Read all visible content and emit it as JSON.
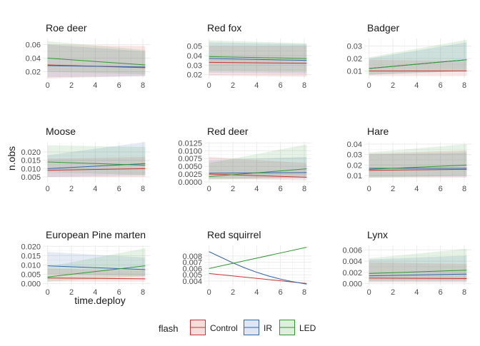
{
  "chart_data": {
    "type": "line",
    "x_axis_label": "time.deploy",
    "y_axis_label": "n.obs",
    "legend": {
      "title": "flash",
      "placement": "bottom",
      "entries": [
        "Control",
        "IR",
        "LED"
      ]
    },
    "series_colors": {
      "Control": "#cc3333",
      "IR": "#3366aa",
      "LED": "#339933"
    },
    "band_opacity": 0.13,
    "x_ticks": [
      "0",
      "2",
      "4",
      "6",
      "8"
    ],
    "x_range": [
      -0.4,
      8.6
    ],
    "grid": true,
    "panels": [
      {
        "title": "Roe deer",
        "ylim": [
          0.01,
          0.069
        ],
        "y_ticks": [
          "0.02",
          "0.04",
          "0.06"
        ],
        "series": [
          {
            "name": "Control",
            "x": [
              0,
              8.2
            ],
            "y": [
              0.03,
              0.026
            ],
            "lower": [
              0.01,
              0.014
            ],
            "upper": [
              0.06,
              0.058
            ]
          },
          {
            "name": "IR",
            "x": [
              0,
              8.2
            ],
            "y": [
              0.029,
              0.027
            ],
            "lower": [
              0.012,
              0.013
            ],
            "upper": [
              0.06,
              0.05
            ]
          },
          {
            "name": "LED",
            "x": [
              0,
              8.2
            ],
            "y": [
              0.04,
              0.03
            ],
            "lower": [
              0.02,
              0.016
            ],
            "upper": [
              0.065,
              0.052
            ]
          }
        ]
      },
      {
        "title": "Red fox",
        "ylim": [
          0.016,
          0.058
        ],
        "y_ticks": [
          "0.02",
          "0.03",
          "0.04",
          "0.05"
        ],
        "series": [
          {
            "name": "Control",
            "x": [
              0,
              8.2
            ],
            "y": [
              0.033,
              0.032
            ],
            "lower": [
              0.019,
              0.018
            ],
            "upper": [
              0.05,
              0.05
            ]
          },
          {
            "name": "IR",
            "x": [
              0,
              8.2
            ],
            "y": [
              0.037,
              0.035
            ],
            "lower": [
              0.022,
              0.021
            ],
            "upper": [
              0.054,
              0.052
            ]
          },
          {
            "name": "LED",
            "x": [
              0,
              8.2
            ],
            "y": [
              0.039,
              0.037
            ],
            "lower": [
              0.024,
              0.023
            ],
            "upper": [
              0.056,
              0.053
            ]
          }
        ]
      },
      {
        "title": "Badger",
        "ylim": [
          0.004,
          0.036
        ],
        "y_ticks": [
          "0.01",
          "0.02",
          "0.03"
        ],
        "series": [
          {
            "name": "Control",
            "x": [
              0,
              8.2
            ],
            "y": [
              0.01,
              0.01
            ],
            "lower": [
              0.006,
              0.006
            ],
            "upper": [
              0.019,
              0.018
            ]
          },
          {
            "name": "IR",
            "x": [
              0,
              8.2
            ],
            "y": [
              0.012,
              0.019
            ],
            "lower": [
              0.007,
              0.01
            ],
            "upper": [
              0.02,
              0.033
            ]
          },
          {
            "name": "LED",
            "x": [
              0,
              8.2
            ],
            "y": [
              0.012,
              0.019
            ],
            "lower": [
              0.007,
              0.01
            ],
            "upper": [
              0.021,
              0.035
            ]
          }
        ]
      },
      {
        "title": "Moose",
        "ylim": [
          0.002,
          0.026
        ],
        "y_ticks": [
          "0.005",
          "0.010",
          "0.015",
          "0.020"
        ],
        "series": [
          {
            "name": "Control",
            "x": [
              0,
              8.2
            ],
            "y": [
              0.009,
              0.01
            ],
            "lower": [
              0.005,
              0.005
            ],
            "upper": [
              0.016,
              0.017
            ]
          },
          {
            "name": "IR",
            "x": [
              0,
              8.2
            ],
            "y": [
              0.01,
              0.013
            ],
            "lower": [
              0.005,
              0.006
            ],
            "upper": [
              0.018,
              0.026
            ]
          },
          {
            "name": "LED",
            "x": [
              0,
              8.2
            ],
            "y": [
              0.014,
              0.012
            ],
            "lower": [
              0.008,
              0.006
            ],
            "upper": [
              0.024,
              0.023
            ]
          }
        ]
      },
      {
        "title": "Red deer",
        "ylim": [
          0,
          0.0128
        ],
        "y_ticks": [
          "0.0000",
          "0.0025",
          "0.0050",
          "0.0075",
          "0.0100",
          "0.0125"
        ],
        "series": [
          {
            "name": "Control",
            "x": [
              0,
              8.2
            ],
            "y": [
              0.0025,
              0.0015
            ],
            "lower": [
              0.001,
              0.0005
            ],
            "upper": [
              0.008,
              0.006
            ]
          },
          {
            "name": "IR",
            "x": [
              0,
              8.2
            ],
            "y": [
              0.0028,
              0.003
            ],
            "lower": [
              0.0012,
              0.0012
            ],
            "upper": [
              0.007,
              0.008
            ]
          },
          {
            "name": "LED",
            "x": [
              0,
              8.2
            ],
            "y": [
              0.0017,
              0.0042
            ],
            "lower": [
              0.0006,
              0.0015
            ],
            "upper": [
              0.006,
              0.012
            ]
          }
        ]
      },
      {
        "title": "Hare",
        "ylim": [
          0.004,
          0.042
        ],
        "y_ticks": [
          "0.01",
          "0.02",
          "0.03",
          "0.04"
        ],
        "series": [
          {
            "name": "Control",
            "x": [
              0,
              8.2
            ],
            "y": [
              0.015,
              0.016
            ],
            "lower": [
              0.008,
              0.008
            ],
            "upper": [
              0.031,
              0.034
            ]
          },
          {
            "name": "IR",
            "x": [
              0,
              8.2
            ],
            "y": [
              0.017,
              0.017
            ],
            "lower": [
              0.009,
              0.009
            ],
            "upper": [
              0.03,
              0.032
            ]
          },
          {
            "name": "LED",
            "x": [
              0,
              8.2
            ],
            "y": [
              0.016,
              0.02
            ],
            "lower": [
              0.008,
              0.01
            ],
            "upper": [
              0.032,
              0.04
            ]
          }
        ]
      },
      {
        "title": "European Pine marten",
        "ylim": [
          -0.001,
          0.0205
        ],
        "y_ticks": [
          "0.000",
          "0.005",
          "0.010",
          "0.015",
          "0.020"
        ],
        "series": [
          {
            "name": "Control",
            "x": [
              0,
              8.2
            ],
            "y": [
              0.003,
              0.0025
            ],
            "lower": [
              0.001,
              0.001
            ],
            "upper": [
              0.008,
              0.007
            ]
          },
          {
            "name": "IR",
            "x": [
              0,
              8.2
            ],
            "y": [
              0.0095,
              0.0075
            ],
            "lower": [
              0.005,
              0.004
            ],
            "upper": [
              0.017,
              0.014
            ]
          },
          {
            "name": "LED",
            "x": [
              0,
              8.2
            ],
            "y": [
              0.0035,
              0.0095
            ],
            "lower": [
              0.001,
              0.004
            ],
            "upper": [
              0.009,
              0.019
            ]
          }
        ]
      },
      {
        "title": "Red squirrel",
        "ylim": [
          0.0033,
          0.0097
        ],
        "y_ticks": [
          "0.004",
          "0.005",
          "0.006",
          "0.007",
          "0.008"
        ],
        "series": [
          {
            "name": "Control",
            "x": [
              0,
              8.2
            ],
            "y": [
              0.0052,
              0.0036
            ],
            "lower": [
              0.0052,
              0.0036
            ],
            "upper": [
              0.0052,
              0.0036
            ]
          },
          {
            "name": "IR",
            "x": [
              0,
              1,
              2,
              3,
              4,
              5,
              6,
              7,
              8.2
            ],
            "y": [
              0.0087,
              0.0078,
              0.0069,
              0.0061,
              0.0054,
              0.0048,
              0.0043,
              0.0039,
              0.0035
            ],
            "lower": [
              0.0087,
              0.0078,
              0.0069,
              0.0061,
              0.0054,
              0.0048,
              0.0043,
              0.0039,
              0.0035
            ],
            "upper": [
              0.0087,
              0.0078,
              0.0069,
              0.0061,
              0.0054,
              0.0048,
              0.0043,
              0.0039,
              0.0035
            ]
          },
          {
            "name": "LED",
            "x": [
              0,
              8.2
            ],
            "y": [
              0.006,
              0.0094
            ],
            "lower": [
              0.006,
              0.0094
            ],
            "upper": [
              0.006,
              0.0094
            ]
          }
        ]
      },
      {
        "title": "Lynx",
        "ylim": [
          -0.0003,
          0.0068
        ],
        "y_ticks": [
          "0.000",
          "0.002",
          "0.004",
          "0.006"
        ],
        "series": [
          {
            "name": "Control",
            "x": [
              0,
              8.2
            ],
            "y": [
              0.001,
              0.0009
            ],
            "lower": [
              0.0002,
              0.0002
            ],
            "upper": [
              0.0038,
              0.0035
            ]
          },
          {
            "name": "IR",
            "x": [
              0,
              8.2
            ],
            "y": [
              0.0014,
              0.0017
            ],
            "lower": [
              0.0004,
              0.0004
            ],
            "upper": [
              0.0043,
              0.005
            ]
          },
          {
            "name": "LED",
            "x": [
              0,
              8.2
            ],
            "y": [
              0.0018,
              0.0024
            ],
            "lower": [
              0.0005,
              0.0006
            ],
            "upper": [
              0.0045,
              0.0062
            ]
          }
        ]
      }
    ]
  }
}
